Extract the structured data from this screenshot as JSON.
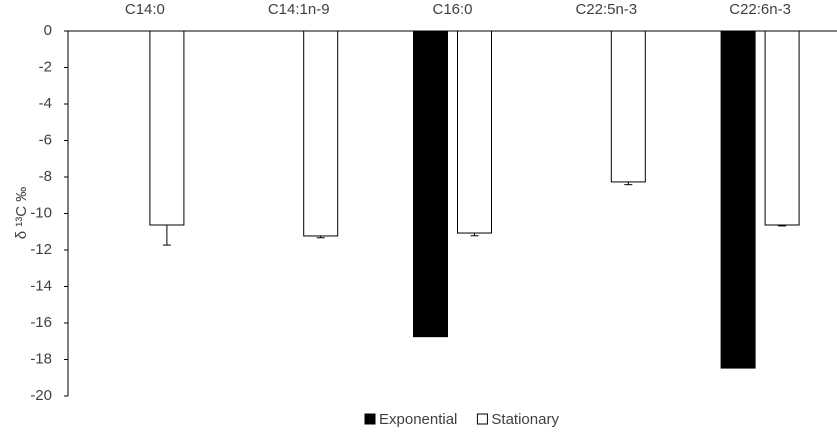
{
  "chart_data": {
    "type": "bar",
    "y_label": "δ ¹³C ‰",
    "categories": [
      "C14:0",
      "C14:1n-9",
      "C16:0",
      "C22:5n-3",
      "C22:6n-3"
    ],
    "series": [
      {
        "name": "Exponential",
        "color": "#000000",
        "values": [
          null,
          null,
          -16.75,
          null,
          -18.47
        ],
        "errors": [
          null,
          null,
          null,
          null,
          null
        ]
      },
      {
        "name": "Stationary",
        "color": "#ffffff",
        "values": [
          -10.63,
          -11.23,
          -11.07,
          -8.27,
          -10.63
        ],
        "errors": [
          1.1,
          0.1,
          0.15,
          0.15,
          0.05
        ]
      }
    ],
    "ylim": [
      -20,
      0
    ],
    "yticks": [
      0,
      -2,
      -4,
      -6,
      -8,
      -10,
      -12,
      -14,
      -16,
      -18,
      -20
    ],
    "legend": "bottom",
    "grid": false
  }
}
